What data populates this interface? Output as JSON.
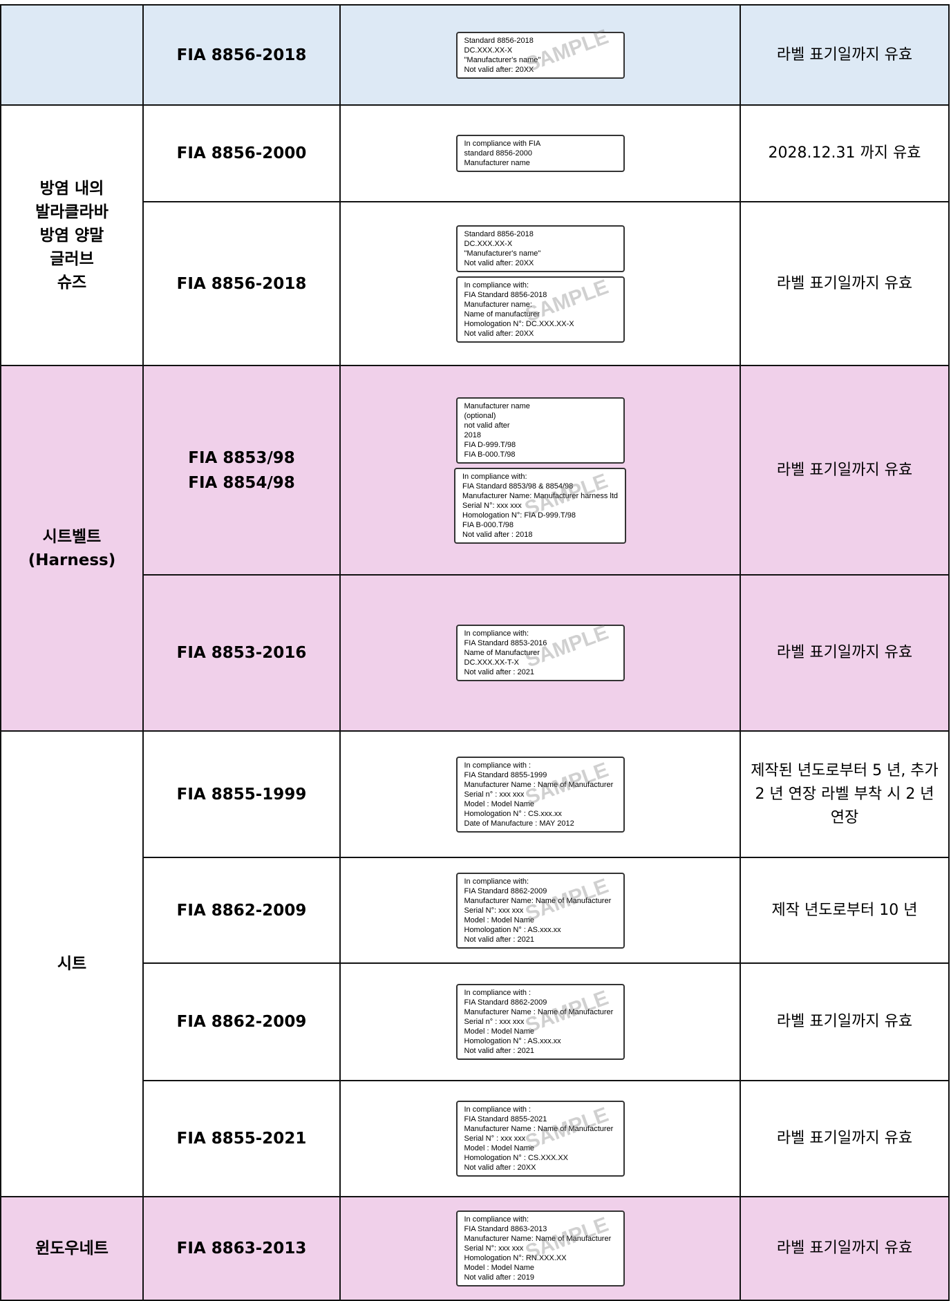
{
  "groups": [
    {
      "bg": "#dde9f5",
      "rows": [
        {
          "standard": [
            "FIA 8856-2018"
          ],
          "labels": [
            {
              "lines": [
                "Standard 8856-2018",
                "DC.XXX.XX-X",
                "\"Manufacturer's name\"",
                "Not valid after: 20XX"
              ],
              "watermark": "SAMPLE"
            }
          ],
          "validity": "라벨 표기일까지 유효"
        }
      ]
    },
    {
      "bg": "#ffffff",
      "name_lines": [
        "방염 내의",
        "발라클라바",
        "방염 양말",
        "글러브",
        "슈즈"
      ],
      "rows": [
        {
          "standard": [
            "FIA 8856-2000"
          ],
          "labels": [
            {
              "lines": [
                "In compliance with FIA",
                "standard 8856-2000",
                "Manufacturer name"
              ]
            }
          ],
          "validity": "2028.12.31 까지 유효"
        },
        {
          "standard": [
            "FIA 8856-2018"
          ],
          "labels": [
            {
              "lines": [
                "Standard 8856-2018",
                "DC.XXX.XX-X",
                "\"Manufacturer's name\"",
                "Not valid after: 20XX"
              ]
            },
            {
              "lines": [
                "In compliance with:",
                "FIA Standard 8856-2018",
                "Manufacturer name:",
                "Name of manufacturer",
                "Homologation N°: DC.XXX.XX-X",
                "Not valid after: 20XX"
              ],
              "watermark": "SAMPLE"
            }
          ],
          "validity": "라벨 표기일까지 유효"
        }
      ]
    },
    {
      "bg": "#f0d0ea",
      "name_lines": [
        "시트벨트",
        "(Harness)"
      ],
      "rows": [
        {
          "standard": [
            "FIA 8853/98",
            "FIA 8854/98"
          ],
          "labels": [
            {
              "lines": [
                "Manufacturer name",
                "(optional)",
                "not valid after",
                "2018",
                "FIA D-999.T/98",
                "FIA B-000.T/98"
              ]
            },
            {
              "lines": [
                "In compliance with:",
                "FIA Standard 8853/98 & 8854/98",
                "Manufacturer Name: Manufacturer harness ltd",
                "Serial N°: xxx xxx",
                "Homologation N°: FIA D-999.T/98",
                "FIA B-000.T/98",
                "Not valid after : 2018"
              ],
              "watermark": "SAMPLE"
            }
          ],
          "validity": "라벨 표기일까지 유효"
        },
        {
          "standard": [
            "FIA 8853-2016"
          ],
          "labels": [
            {
              "lines": [
                "In compliance with:",
                "FIA Standard 8853-2016",
                "Name of Manufacturer",
                "DC.XXX.XX-T-X",
                "Not valid after : 2021"
              ],
              "watermark": "SAMPLE"
            }
          ],
          "validity": "라벨 표기일까지 유효"
        }
      ]
    },
    {
      "bg": "#ffffff",
      "name_lines": [
        "시트"
      ],
      "rows": [
        {
          "standard": [
            "FIA 8855-1999"
          ],
          "labels": [
            {
              "lines": [
                "In compliance with :",
                "FIA Standard 8855-1999",
                "Manufacturer Name : Name of Manufacturer",
                "Serial n° : xxx xxx",
                "Model : Model Name",
                "Homologation N° : CS.xxx.xx",
                "Date of Manufacture : MAY 2012"
              ],
              "watermark": "SAMPLE"
            }
          ],
          "validity": "제작된 년도로부터 5 년, 추가 2 년 연장 라벨 부착 시 2 년 연장"
        },
        {
          "standard": [
            "FIA 8862-2009"
          ],
          "labels": [
            {
              "lines": [
                "In compliance with:",
                "FIA Standard 8862-2009",
                "Manufacturer Name: Name of Manufacturer",
                "Serial N°: xxx xxx",
                "Model : Model Name",
                "Homologation N° : AS.xxx.xx",
                "Not valid after : 2021"
              ],
              "watermark": "SAMPLE"
            }
          ],
          "validity": "제작 년도로부터 10 년"
        },
        {
          "standard": [
            "FIA 8862-2009"
          ],
          "labels": [
            {
              "lines": [
                "In compliance with :",
                "FIA Standard 8862-2009",
                "Manufacturer Name : Name of Manufacturer",
                "Serial n° : xxx xxx",
                "Model : Model Name",
                "Homologation N° : AS.xxx.xx",
                "Not valid after : 2021"
              ],
              "watermark": "SAMPLE"
            }
          ],
          "validity": "라벨 표기일까지 유효"
        },
        {
          "standard": [
            "FIA 8855-2021"
          ],
          "labels": [
            {
              "lines": [
                "In compliance with :",
                "FIA Standard 8855-2021",
                "Manufacturer Name : Name of Manufacturer",
                "Serial N° : xxx xxx",
                "Model : Model Name",
                "Homologation N° : CS.XXX.XX",
                "Not valid after : 20XX"
              ],
              "watermark": "SAMPLE"
            }
          ],
          "validity": "라벨 표기일까지 유효"
        }
      ]
    },
    {
      "bg": "#f0d0ea",
      "name_lines": [
        "윈도우네트"
      ],
      "rows": [
        {
          "standard": [
            "FIA 8863-2013"
          ],
          "labels": [
            {
              "lines": [
                "In compliance with:",
                "FIA Standard 8863-2013",
                "Manufacturer Name: Name of Manufacturer",
                "Serial N°: xxx xxx",
                "Homologation N°: RN.XXX.XX",
                "Model : Model Name",
                "Not valid after : 2019"
              ],
              "watermark": "SAMPLE"
            }
          ],
          "validity": "라벨 표기일까지 유효"
        }
      ]
    }
  ]
}
